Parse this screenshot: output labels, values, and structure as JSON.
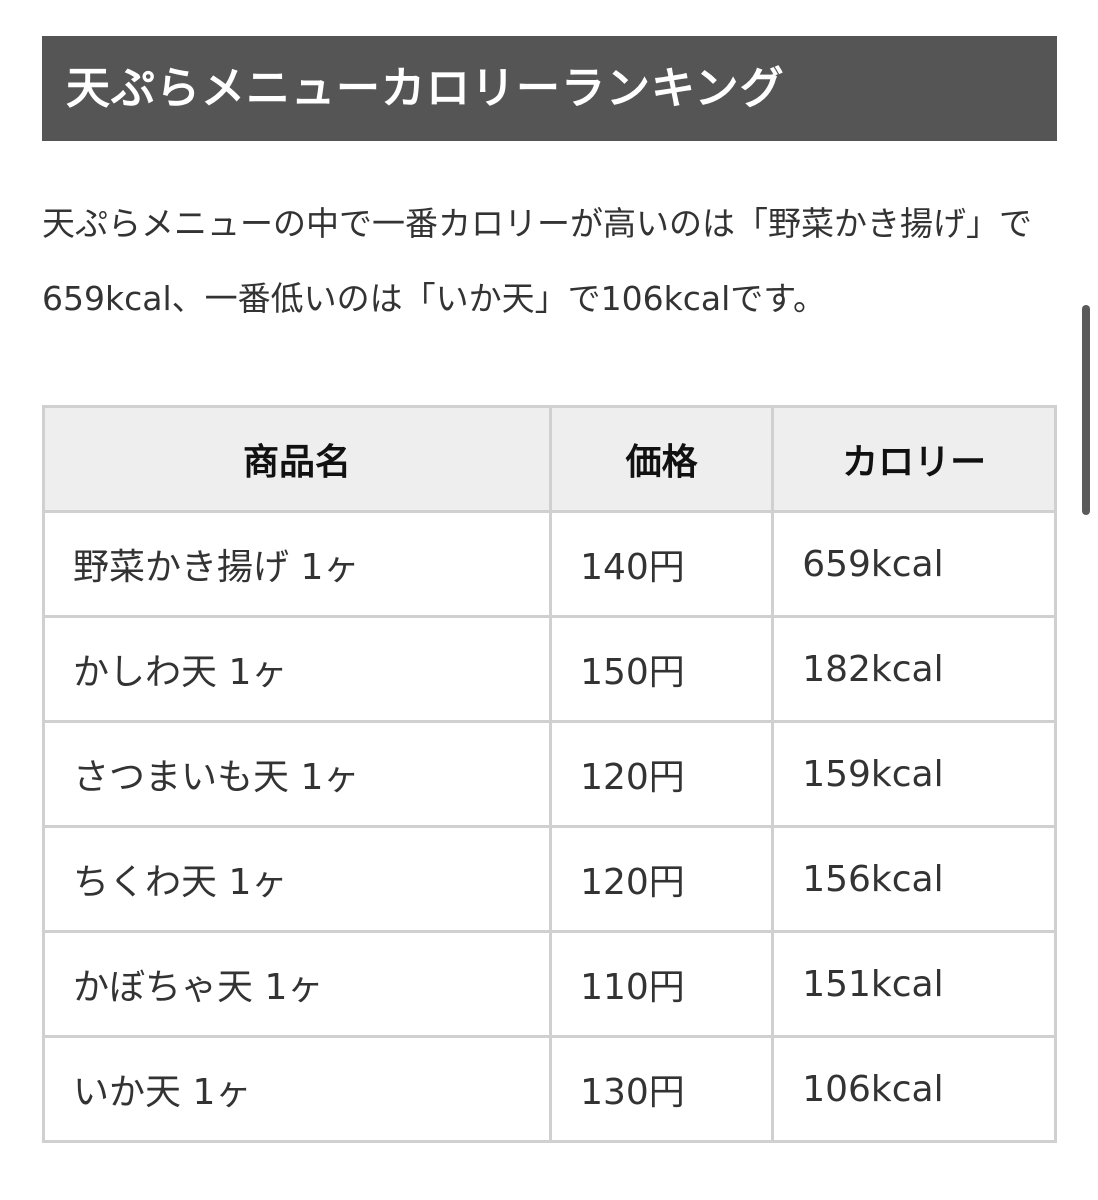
{
  "heading": "天ぷらメニューカロリーランキング",
  "intro": "天ぷらメニューの中で一番カロリーが高いのは「野菜かき揚げ」で659kcal、一番低いのは「いか天」で106kcalです。",
  "table": {
    "headers": [
      "商品名",
      "価格",
      "カロリー"
    ],
    "rows": [
      [
        "野菜かき揚げ 1ヶ",
        "140円",
        "659kcal"
      ],
      [
        "かしわ天 1ヶ",
        "150円",
        "182kcal"
      ],
      [
        "さつまいも天 1ヶ",
        "120円",
        "159kcal"
      ],
      [
        "ちくわ天 1ヶ",
        "120円",
        "156kcal"
      ],
      [
        "かぼちゃ天 1ヶ",
        "110円",
        "151kcal"
      ],
      [
        "いか天 1ヶ",
        "130円",
        "106kcal"
      ]
    ]
  }
}
